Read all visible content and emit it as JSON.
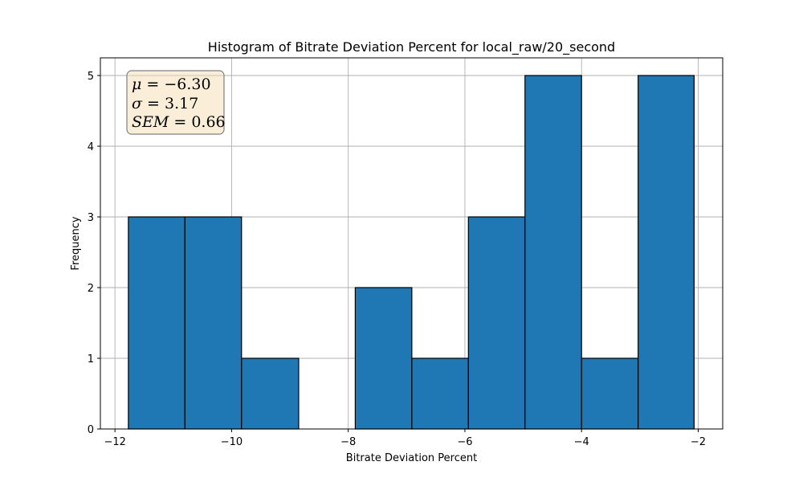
{
  "chart_data": {
    "type": "bar",
    "title": "Histogram of Bitrate Deviation Percent for local_raw/20_second",
    "xlabel": "Bitrate Deviation Percent",
    "ylabel": "Frequency",
    "bin_edges": [
      -11.77,
      -10.8,
      -9.83,
      -8.85,
      -7.88,
      -6.91,
      -5.94,
      -4.97,
      -4.0,
      -3.03,
      -2.07
    ],
    "values": [
      3,
      3,
      1,
      0,
      2,
      1,
      3,
      5,
      1,
      5
    ],
    "xlim": [
      -12.25,
      -1.58
    ],
    "ylim": [
      0,
      5.25
    ],
    "xticks": [
      -12,
      -10,
      -8,
      -6,
      -4,
      -2
    ],
    "xtick_labels": [
      "−12",
      "−10",
      "−8",
      "−6",
      "−4",
      "−2"
    ],
    "yticks": [
      0,
      1,
      2,
      3,
      4,
      5
    ],
    "ytick_labels": [
      "0",
      "1",
      "2",
      "3",
      "4",
      "5"
    ],
    "grid": true,
    "colors": {
      "bar": "#1f77b4",
      "edge": "#000000",
      "grid": "#b0b0b0",
      "box_fill": "#f5deb3",
      "box_edge": "#808080"
    },
    "annotation": {
      "mu_label": "μ",
      "mu_value": "−6.30",
      "sigma_label": "σ",
      "sigma_value": "3.17",
      "sem_label": "SEM",
      "sem_value": "0.66",
      "position": "top-left"
    }
  }
}
